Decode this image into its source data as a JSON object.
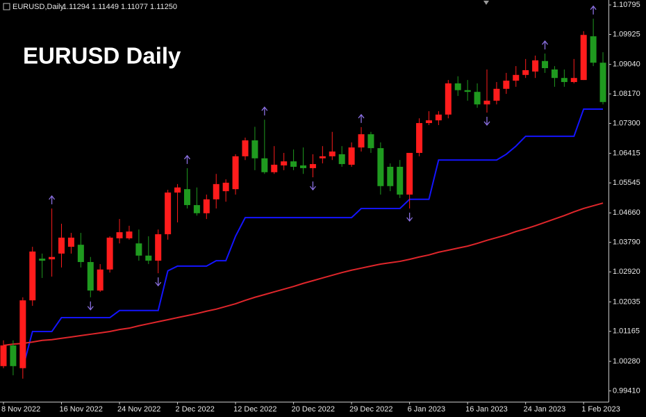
{
  "chart_data": {
    "type": "candlestick",
    "title": "EURUSD Daily",
    "symbol": "EURUSD,Daily",
    "quote": "1.11294 1.11449 1.11077 1.11250",
    "categories": [
      "8 Nov 2022",
      null,
      null,
      null,
      null,
      null,
      "16 Nov 2022",
      null,
      null,
      null,
      null,
      null,
      "24 Nov 2022",
      null,
      null,
      null,
      null,
      null,
      "2 Dec 2022",
      null,
      null,
      null,
      null,
      null,
      "12 Dec 2022",
      null,
      null,
      null,
      null,
      null,
      "20 Dec 2022",
      null,
      null,
      null,
      null,
      null,
      "29 Dec 2022",
      null,
      null,
      null,
      null,
      null,
      "6 Jan 2023",
      null,
      null,
      null,
      null,
      null,
      "16 Jan 2023",
      null,
      null,
      null,
      null,
      null,
      "24 Jan 2023",
      null,
      null,
      null,
      null,
      null,
      "1 Feb 2023",
      null,
      null
    ],
    "open": [
      1.0014,
      1.0075,
      1.0008,
      1.0208,
      1.0331,
      1.0329,
      1.0346,
      1.0366,
      1.0372,
      1.0321,
      1.0237,
      1.0299,
      1.0391,
      1.0391,
      1.0376,
      1.034,
      1.0325,
      1.0403,
      1.0526,
      1.0536,
      1.0489,
      1.0465,
      1.0506,
      1.053,
      1.0536,
      1.0633,
      1.068,
      1.0627,
      1.0586,
      1.0606,
      1.0618,
      1.0606,
      1.0598,
      1.0627,
      1.0633,
      1.0639,
      1.0608,
      1.0659,
      1.0698,
      1.0657,
      1.0602,
      1.0602,
      1.052,
      1.0643,
      1.0731,
      1.0739,
      1.0756,
      1.0848,
      1.0828,
      1.0823,
      1.0786,
      1.0797,
      1.0832,
      1.0856,
      1.0873,
      1.0883,
      1.0914,
      1.0889,
      1.0864,
      1.0852,
      1.0858,
      1.0987,
      1.0909
    ],
    "high": [
      1.009,
      1.009,
      1.0217,
      1.0366,
      1.0346,
      1.0479,
      1.0434,
      1.0407,
      1.0407,
      1.0336,
      1.0315,
      1.0397,
      1.0448,
      1.0428,
      1.0417,
      1.0397,
      1.0417,
      1.0534,
      1.0551,
      1.0598,
      1.0541,
      1.052,
      1.0581,
      1.0565,
      1.0639,
      1.0688,
      1.072,
      1.0741,
      1.0663,
      1.0643,
      1.0653,
      1.0659,
      1.0639,
      1.0663,
      1.0705,
      1.0663,
      1.0674,
      1.0719,
      1.0705,
      1.0674,
      1.0612,
      1.0622,
      1.0643,
      1.0745,
      1.0766,
      1.0766,
      1.0858,
      1.0869,
      1.0858,
      1.0848,
      1.0889,
      1.0852,
      1.0879,
      1.0899,
      1.092,
      1.093,
      1.0936,
      1.0899,
      1.0889,
      1.092,
      1.1002,
      1.1039,
      1.094
    ],
    "low": [
      1.0008,
      0.9987,
      0.9977,
      1.0192,
      1.0274,
      1.0278,
      1.0305,
      1.0346,
      1.0305,
      1.0217,
      1.0233,
      1.029,
      1.0376,
      1.0387,
      1.0325,
      1.0315,
      1.0288,
      1.0387,
      1.0438,
      1.0479,
      1.0458,
      1.0448,
      1.0479,
      1.0499,
      1.052,
      1.0622,
      1.0592,
      1.0581,
      1.0581,
      1.0592,
      1.0592,
      1.0581,
      1.0571,
      1.0612,
      1.0622,
      1.0602,
      1.0602,
      1.0647,
      1.0643,
      1.052,
      1.053,
      1.051,
      1.0479,
      1.0633,
      1.0725,
      1.0725,
      1.0745,
      1.0811,
      1.0797,
      1.0776,
      1.0762,
      1.0786,
      1.0817,
      1.0838,
      1.0864,
      1.0864,
      1.0879,
      1.0838,
      1.0838,
      1.0848,
      1.0858,
      1.0899,
      1.0786
    ],
    "close": [
      1.0075,
      1.0014,
      1.0208,
      1.0352,
      1.0325,
      1.0336,
      1.0393,
      1.0393,
      1.0321,
      1.0237,
      1.0299,
      1.0393,
      1.0409,
      1.0411,
      1.034,
      1.0325,
      1.0403,
      1.0526,
      1.0541,
      1.0489,
      1.0465,
      1.0506,
      1.0551,
      1.0555,
      1.0633,
      1.068,
      1.0627,
      1.0586,
      1.0608,
      1.0618,
      1.0602,
      1.0598,
      1.061,
      1.0633,
      1.0647,
      1.061,
      1.0659,
      1.0698,
      1.0657,
      1.0545,
      1.0545,
      1.052,
      1.0643,
      1.0731,
      1.0739,
      1.0756,
      1.0848,
      1.0828,
      1.0823,
      1.0786,
      1.0797,
      1.0832,
      1.0856,
      1.0873,
      1.0887,
      1.0916,
      1.0893,
      1.0864,
      1.0852,
      1.0864,
      1.0991,
      1.0909,
      1.0793
    ],
    "up_color": "#ff1c1c",
    "down_color": "#1f9a1f",
    "series": [
      {
        "color": "#1414ff",
        "values": [
          null,
          null,
          1.0008,
          1.0116,
          1.0116,
          1.0116,
          1.0157,
          1.0157,
          1.0157,
          1.0157,
          1.0157,
          1.0157,
          1.0178,
          1.0178,
          1.0178,
          1.0178,
          1.0178,
          1.0295,
          1.0309,
          1.0309,
          1.0309,
          1.0309,
          1.0325,
          1.0325,
          1.0397,
          1.0452,
          1.0452,
          1.0452,
          1.0452,
          1.0452,
          1.0452,
          1.0452,
          1.0452,
          1.0452,
          1.0452,
          1.0452,
          1.0452,
          1.0479,
          1.0479,
          1.0479,
          1.0479,
          1.0479,
          1.0506,
          1.0506,
          1.0506,
          1.0622,
          1.0622,
          1.0622,
          1.0622,
          1.0622,
          1.0622,
          1.0622,
          1.0639,
          1.0663,
          1.0692,
          1.0692,
          1.0692,
          1.0692,
          1.0692,
          1.0692,
          1.0772,
          1.0772,
          1.0772
        ]
      },
      {
        "color": "#e0262b",
        "values": [
          1.0075,
          1.0079,
          1.0081,
          1.0085,
          1.009,
          1.0092,
          1.0096,
          1.01,
          1.0104,
          1.0108,
          1.0112,
          1.0116,
          1.0122,
          1.0126,
          1.0133,
          1.0139,
          1.0145,
          1.0151,
          1.0157,
          1.0163,
          1.0169,
          1.0176,
          1.0182,
          1.019,
          1.0198,
          1.0208,
          1.0217,
          1.0225,
          1.0233,
          1.0241,
          1.0249,
          1.0258,
          1.0266,
          1.0274,
          1.0282,
          1.029,
          1.0297,
          1.0303,
          1.0309,
          1.0315,
          1.0319,
          1.0323,
          1.0329,
          1.0336,
          1.0342,
          1.035,
          1.0356,
          1.0362,
          1.0368,
          1.0376,
          1.0385,
          1.0393,
          1.0401,
          1.0411,
          1.0419,
          1.0428,
          1.0438,
          1.0448,
          1.0458,
          1.0469,
          1.0479,
          1.0487,
          1.0495
        ]
      }
    ],
    "fractals_up": [
      null,
      null,
      null,
      null,
      null,
      1.0479,
      null,
      null,
      null,
      null,
      null,
      null,
      null,
      null,
      null,
      null,
      null,
      null,
      null,
      1.0598,
      null,
      null,
      null,
      null,
      null,
      null,
      null,
      1.0741,
      null,
      null,
      null,
      null,
      null,
      null,
      null,
      null,
      null,
      1.0719,
      null,
      null,
      null,
      null,
      null,
      null,
      null,
      null,
      null,
      null,
      null,
      null,
      null,
      null,
      null,
      null,
      null,
      null,
      1.0936,
      null,
      null,
      null,
      null,
      1.1039,
      null
    ],
    "fractals_down": [
      null,
      null,
      null,
      null,
      null,
      null,
      null,
      null,
      null,
      1.0217,
      null,
      null,
      null,
      null,
      null,
      null,
      1.0288,
      null,
      null,
      null,
      null,
      null,
      null,
      null,
      null,
      null,
      null,
      null,
      null,
      null,
      null,
      null,
      1.0571,
      null,
      null,
      null,
      null,
      null,
      null,
      null,
      null,
      null,
      1.0479,
      null,
      null,
      null,
      null,
      null,
      null,
      null,
      1.0762,
      null,
      null,
      null,
      null,
      null,
      null,
      null,
      null,
      null,
      null,
      null,
      null
    ],
    "fractal_color": "#8a6fe0",
    "ylim": [
      0.9909,
      1.1094
    ],
    "yticks": [
      1.10795,
      1.09925,
      {
        "value": 1.0904,
        "label": "1.09040"
      },
      {
        "value": 1.0817,
        "label": "1.08170"
      },
      {
        "value": 1.073,
        "label": "1.07300"
      },
      1.06415,
      1.05545,
      {
        "value": 1.0466,
        "label": "1.04660"
      },
      {
        "value": 1.0379,
        "label": "1.03790"
      },
      {
        "value": 1.0292,
        "label": "1.02920"
      },
      1.02035,
      1.01165,
      {
        "value": 1.0028,
        "label": "1.00280"
      },
      {
        "value": 0.9941,
        "label": "0.99410"
      }
    ]
  }
}
